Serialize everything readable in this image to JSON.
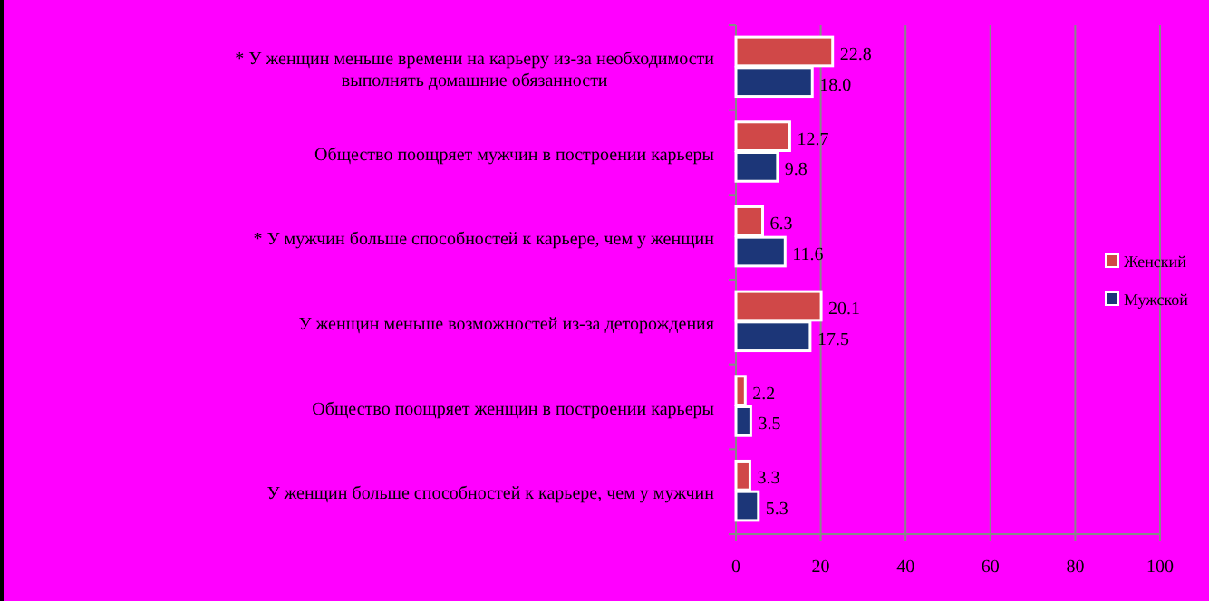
{
  "chart_data": {
    "type": "bar",
    "orientation": "horizontal",
    "categories": [
      "* У женщин меньше времени на карьеру из-за необходимости выполнять домашние обязанности",
      "Общество поощряет мужчин в построении карьеры",
      "* У мужчин больше способностей к карьере, чем у женщин",
      "У женщин меньше возможностей из-за деторождения",
      "Общество поощряет женщин в построении карьеры",
      "У женщин больше способностей к карьере, чем у мужчин"
    ],
    "series": [
      {
        "name": "Женский",
        "color": "#d04848",
        "values": [
          22.8,
          12.7,
          6.3,
          20.1,
          2.2,
          3.3
        ],
        "value_labels": [
          "22.8",
          "12.7",
          "6.3",
          "20.1",
          "2.2",
          "3.3"
        ]
      },
      {
        "name": "Мужской",
        "color": "#1c3678",
        "values": [
          18.0,
          9.8,
          11.6,
          17.5,
          3.5,
          5.3
        ],
        "value_labels": [
          "18.0",
          "9.8",
          "11.6",
          "17.5",
          "3.5",
          "5.3"
        ]
      }
    ],
    "xlim": [
      0,
      100
    ],
    "xticks": [
      0,
      20,
      40,
      60,
      80,
      100
    ],
    "grid": "x",
    "legend": "right"
  }
}
